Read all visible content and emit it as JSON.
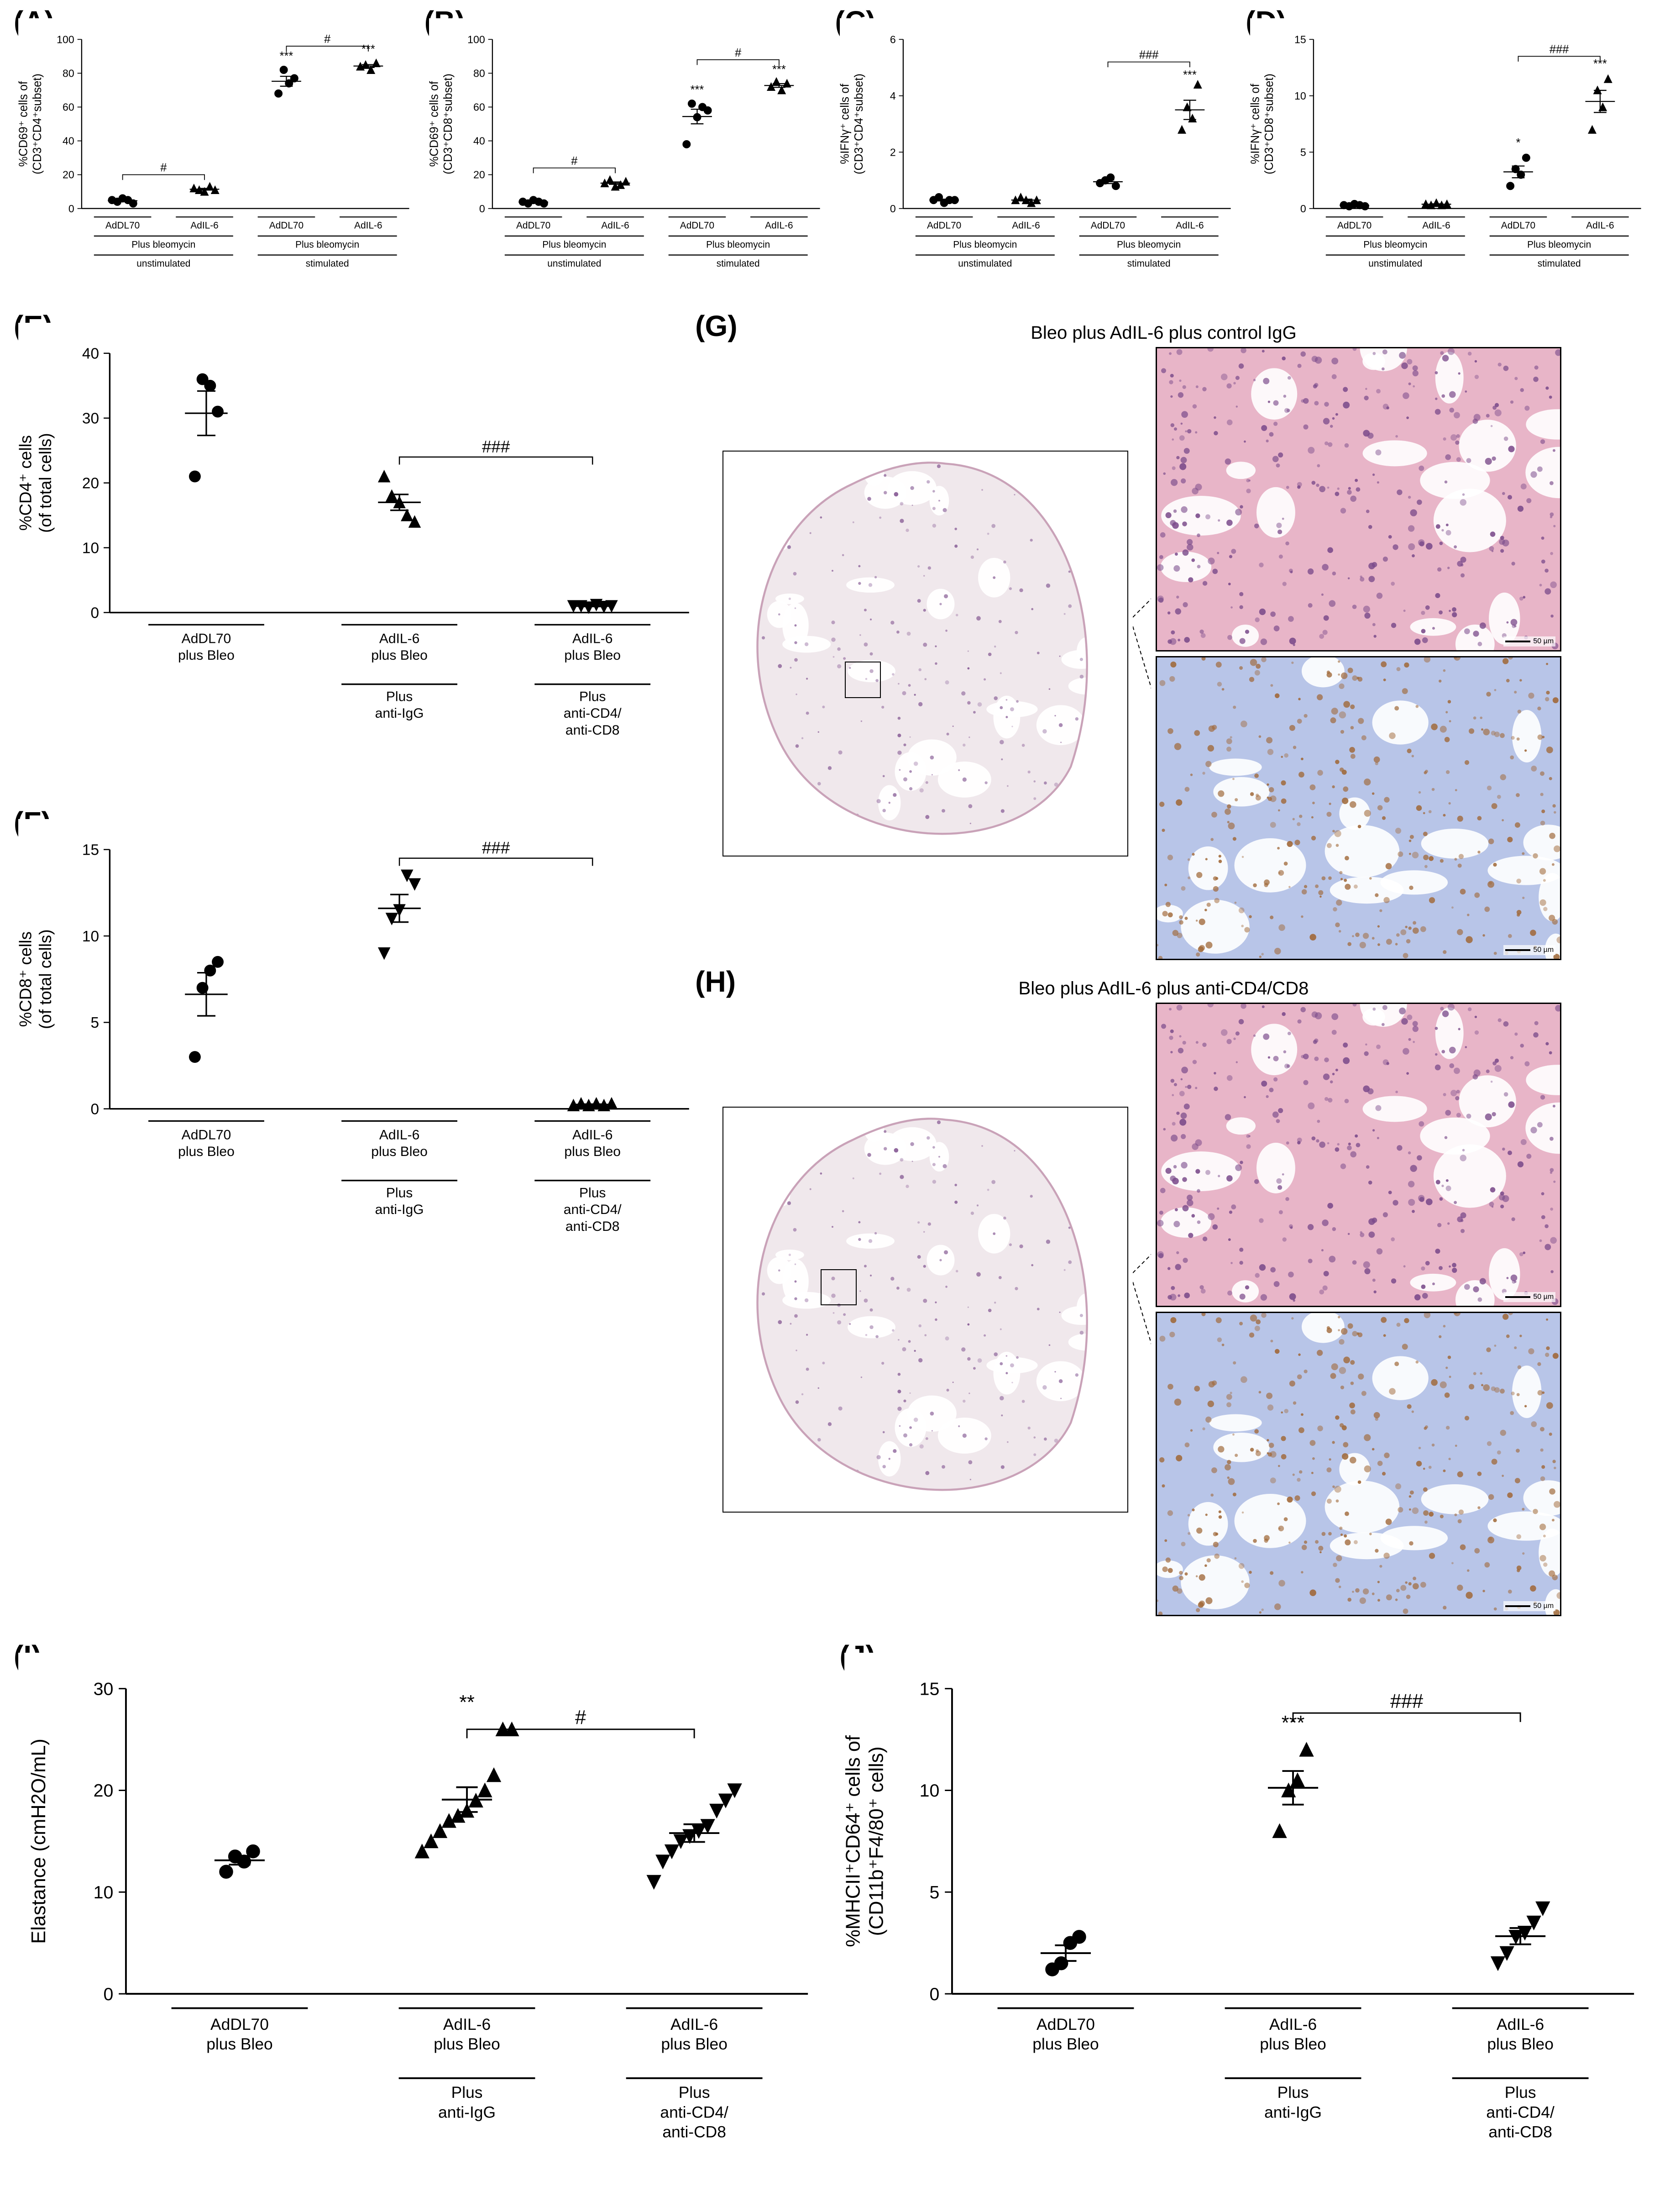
{
  "colors": {
    "bg": "#ffffff",
    "axis": "#000000",
    "marker_fill": "#000000",
    "marker_stroke": "#000000",
    "he_pink": "#e8b5c8",
    "he_purple": "#7a4a8a",
    "ihc_blue": "#b8c5e8",
    "ihc_brown": "#a06838",
    "lung_bg": "#f0e8ec"
  },
  "typography": {
    "panel_label_fontsize_pt": 48,
    "axis_title_fontsize_pt": 16,
    "tick_fontsize_pt": 14,
    "category_fontsize_pt": 13
  },
  "panels": {
    "A": {
      "type": "scatter",
      "y_title_lines": [
        "%CD69⁺ cells of",
        "(CD3⁺CD4⁺subset)"
      ],
      "ylim": [
        0,
        100
      ],
      "ytick_step": 20,
      "groups": [
        {
          "label": "AdDL70",
          "marker": "circle",
          "values": [
            5,
            4,
            6,
            5,
            3
          ]
        },
        {
          "label": "AdIL-6",
          "marker": "triangle",
          "values": [
            12,
            11,
            10,
            13,
            11
          ]
        },
        {
          "label": "AdDL70",
          "marker": "circle",
          "values": [
            68,
            82,
            74,
            77
          ]
        },
        {
          "label": "AdIL-6",
          "marker": "triangle",
          "values": [
            84,
            85,
            82,
            86
          ]
        }
      ],
      "bottom_block_a": "Plus bleomycin",
      "bottom_block_b": "Plus bleomycin",
      "bottom_row2_a": "unstimulated",
      "bottom_row2_b": "stimulated",
      "sig": [
        {
          "from": 0,
          "to": 1,
          "label": "#",
          "y": 20
        },
        {
          "from": 2,
          "to": 3,
          "label": "#",
          "y": 96
        },
        {
          "over": 2,
          "label": "***",
          "y": 88
        },
        {
          "over": 3,
          "label": "***",
          "y": 92
        }
      ]
    },
    "B": {
      "type": "scatter",
      "y_title_lines": [
        "%CD69⁺ cells of",
        "(CD3⁺CD8⁺subset)"
      ],
      "ylim": [
        0,
        100
      ],
      "ytick_step": 20,
      "groups": [
        {
          "label": "AdDL70",
          "marker": "circle",
          "values": [
            4,
            3,
            5,
            4,
            3
          ]
        },
        {
          "label": "AdIL-6",
          "marker": "triangle",
          "values": [
            15,
            17,
            13,
            14,
            16
          ]
        },
        {
          "label": "AdDL70",
          "marker": "circle",
          "values": [
            38,
            62,
            54,
            60,
            58
          ]
        },
        {
          "label": "AdIL-6",
          "marker": "triangle",
          "values": [
            72,
            75,
            70,
            74
          ]
        }
      ],
      "bottom_block_a": "Plus bleomycin",
      "bottom_block_b": "Plus bleomycin",
      "bottom_row2_a": "unstimulated",
      "bottom_row2_b": "stimulated",
      "sig": [
        {
          "from": 0,
          "to": 1,
          "label": "#",
          "y": 24
        },
        {
          "from": 2,
          "to": 3,
          "label": "#",
          "y": 88
        },
        {
          "over": 2,
          "label": "***",
          "y": 68
        },
        {
          "over": 3,
          "label": "***",
          "y": 80
        }
      ]
    },
    "C": {
      "type": "scatter",
      "y_title_lines": [
        "%IFNγ⁺ cells of",
        "(CD3⁺CD4⁺subset)"
      ],
      "ylim": [
        0,
        6
      ],
      "ytick_step": 2,
      "groups": [
        {
          "label": "AdDL70",
          "marker": "circle",
          "values": [
            0.3,
            0.4,
            0.2,
            0.3,
            0.3
          ]
        },
        {
          "label": "AdIL-6",
          "marker": "triangle",
          "values": [
            0.3,
            0.4,
            0.3,
            0.2,
            0.3
          ]
        },
        {
          "label": "AdDL70",
          "marker": "circle",
          "values": [
            0.9,
            1.0,
            1.1,
            0.8
          ]
        },
        {
          "label": "AdIL-6",
          "marker": "triangle",
          "values": [
            2.8,
            3.6,
            3.2,
            4.4
          ]
        }
      ],
      "bottom_block_a": "Plus bleomycin",
      "bottom_block_b": "Plus bleomycin",
      "bottom_row2_a": "unstimulated",
      "bottom_row2_b": "stimulated",
      "sig": [
        {
          "from": 2,
          "to": 3,
          "label": "###",
          "y": 5.2
        },
        {
          "over": 3,
          "label": "***",
          "y": 4.6
        }
      ]
    },
    "D": {
      "type": "scatter",
      "y_title_lines": [
        "%IFNγ⁺ cells of",
        "(CD3⁺CD8⁺subset)"
      ],
      "ylim": [
        0,
        15
      ],
      "ytick_step": 5,
      "groups": [
        {
          "label": "AdDL70",
          "marker": "circle",
          "values": [
            0.3,
            0.2,
            0.4,
            0.3,
            0.2
          ]
        },
        {
          "label": "AdIL-6",
          "marker": "triangle",
          "values": [
            0.4,
            0.3,
            0.5,
            0.3,
            0.4
          ]
        },
        {
          "label": "AdDL70",
          "marker": "circle",
          "values": [
            2.0,
            3.5,
            3.0,
            4.5
          ]
        },
        {
          "label": "AdIL-6",
          "marker": "triangle",
          "values": [
            7.0,
            10.5,
            9.0,
            11.5
          ]
        }
      ],
      "bottom_block_a": "Plus bleomycin",
      "bottom_block_b": "Plus bleomycin",
      "bottom_row2_a": "unstimulated",
      "bottom_row2_b": "stimulated",
      "sig": [
        {
          "from": 2,
          "to": 3,
          "label": "###",
          "y": 13.5
        },
        {
          "over": 2,
          "label": "*",
          "y": 5.5
        },
        {
          "over": 3,
          "label": "***",
          "y": 12.5
        }
      ]
    },
    "E": {
      "type": "scatter",
      "y_title_lines": [
        "%CD4⁺ cells",
        "(of total cells)"
      ],
      "ylim": [
        0,
        40
      ],
      "ytick_step": 10,
      "groups": [
        {
          "label_lines": [
            "AdDL70",
            "plus Bleo"
          ],
          "sub": "",
          "marker": "circle",
          "values": [
            21,
            36,
            35,
            31
          ]
        },
        {
          "label_lines": [
            "AdIL-6",
            "plus Bleo"
          ],
          "sub": "Plus\nanti-IgG",
          "marker": "triangle",
          "values": [
            21,
            18,
            17,
            15,
            14
          ]
        },
        {
          "label_lines": [
            "AdIL-6",
            "plus Bleo"
          ],
          "sub": "Plus\nanti-CD4/\nanti-CD8",
          "marker": "triangle-down",
          "values": [
            1,
            1,
            0.8,
            1.2,
            0.9,
            1
          ]
        }
      ],
      "sig": [
        {
          "from": 1,
          "to": 2,
          "label": "###",
          "y": 24
        }
      ]
    },
    "F": {
      "type": "scatter",
      "y_title_lines": [
        "%CD8⁺ cells",
        "(of total cells)"
      ],
      "ylim": [
        0,
        15
      ],
      "ytick_step": 5,
      "groups": [
        {
          "label_lines": [
            "AdDL70",
            "plus Bleo"
          ],
          "sub": "",
          "marker": "circle",
          "values": [
            3,
            7,
            8,
            8.5
          ]
        },
        {
          "label_lines": [
            "AdIL-6",
            "plus Bleo"
          ],
          "sub": "Plus\nanti-IgG",
          "marker": "triangle-down",
          "values": [
            9,
            11,
            11.5,
            13.5,
            13
          ]
        },
        {
          "label_lines": [
            "AdIL-6",
            "plus Bleo"
          ],
          "sub": "Plus\nanti-CD4/\nanti-CD8",
          "marker": "triangle",
          "values": [
            0.2,
            0.3,
            0.2,
            0.3,
            0.2,
            0.3
          ]
        }
      ],
      "sig": [
        {
          "from": 1,
          "to": 2,
          "label": "###",
          "y": 14.5
        }
      ]
    },
    "G": {
      "type": "micrograph",
      "title": "Bleo plus AdIL-6 plus control IgG",
      "roi": {
        "left_pct": 30,
        "top_pct": 52
      },
      "scale_label": "50 µm"
    },
    "H": {
      "type": "micrograph",
      "title": "Bleo plus AdIL-6 plus anti-CD4/CD8",
      "roi": {
        "left_pct": 24,
        "top_pct": 40
      },
      "scale_label": "50 µm"
    },
    "I": {
      "type": "scatter",
      "y_title_lines": [
        "Elastance (cmH2O/mL)"
      ],
      "ylim": [
        0,
        30
      ],
      "ytick_step": 10,
      "groups": [
        {
          "label_lines": [
            "AdDL70",
            "plus Bleo"
          ],
          "sub": "",
          "marker": "circle",
          "values": [
            12,
            13.5,
            13,
            14
          ]
        },
        {
          "label_lines": [
            "AdIL-6",
            "plus Bleo"
          ],
          "sub": "Plus\nanti-IgG",
          "marker": "triangle",
          "values": [
            14,
            15,
            16,
            17,
            17.5,
            18,
            19,
            20,
            21.5,
            26,
            26
          ]
        },
        {
          "label_lines": [
            "AdIL-6",
            "plus Bleo"
          ],
          "sub": "Plus\nanti-CD4/\nanti-CD8",
          "marker": "triangle-down",
          "values": [
            11,
            13,
            14,
            15,
            15.5,
            16,
            16.5,
            18,
            19,
            20
          ]
        }
      ],
      "sig": [
        {
          "over": 1,
          "label": "**",
          "y": 28
        },
        {
          "from": 1,
          "to": 2,
          "label": "#",
          "y": 26
        }
      ]
    },
    "J": {
      "type": "scatter",
      "y_title_lines": [
        "%MHCII⁺CD64⁺ cells of",
        "(CD11b⁺F4/80⁺ cells)"
      ],
      "ylim": [
        0,
        15
      ],
      "ytick_step": 5,
      "groups": [
        {
          "label_lines": [
            "AdDL70",
            "plus Bleo"
          ],
          "sub": "",
          "marker": "circle",
          "values": [
            1.2,
            1.5,
            2.5,
            2.8
          ]
        },
        {
          "label_lines": [
            "AdIL-6",
            "plus Bleo"
          ],
          "sub": "Plus\nanti-IgG",
          "marker": "triangle",
          "values": [
            8,
            10,
            10.5,
            12
          ]
        },
        {
          "label_lines": [
            "AdIL-6",
            "plus Bleo"
          ],
          "sub": "Plus\nanti-CD4/\nanti-CD8",
          "marker": "triangle-down",
          "values": [
            1.5,
            2,
            2.8,
            3,
            3.5,
            4.2
          ]
        }
      ],
      "sig": [
        {
          "over": 1,
          "label": "***",
          "y": 13
        },
        {
          "from": 1,
          "to": 2,
          "label": "###",
          "y": 13.8
        }
      ]
    }
  }
}
